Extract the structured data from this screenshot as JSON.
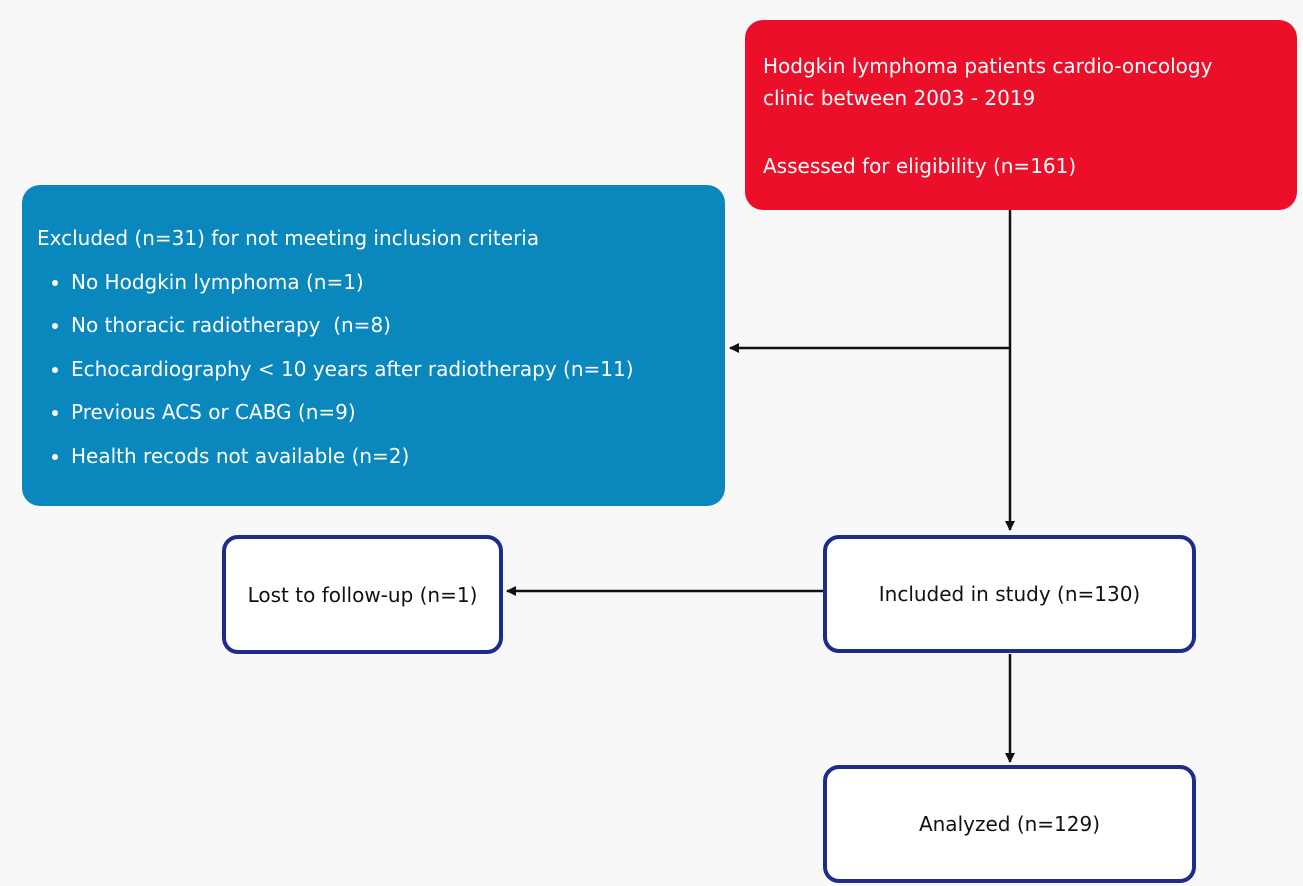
{
  "nodes": [
    {
      "id": "assessed",
      "lines": [
        "Hodgkin lymphoma patients cardio-oncology",
        "clinic between 2003 - 2019"
      ],
      "detail": "Assessed for eligibility (n=161)"
    },
    {
      "id": "excluded",
      "title": "Excluded (n=31) for not meeting inclusion criteria",
      "items": [
        "No Hodgkin lymphoma (n=1)",
        "No thoracic radiotherapy  (n=8)",
        "Echocardiography < 10 years after radiotherapy (n=11)",
        "Previous ACS or CABG (n=9)",
        "Health recods not available (n=2)"
      ]
    },
    {
      "id": "included",
      "label": "Included in study (n=130)"
    },
    {
      "id": "lost",
      "label": "Lost to follow-up (n=1)"
    },
    {
      "id": "analyzed",
      "label": "Analyzed (n=129)"
    }
  ]
}
